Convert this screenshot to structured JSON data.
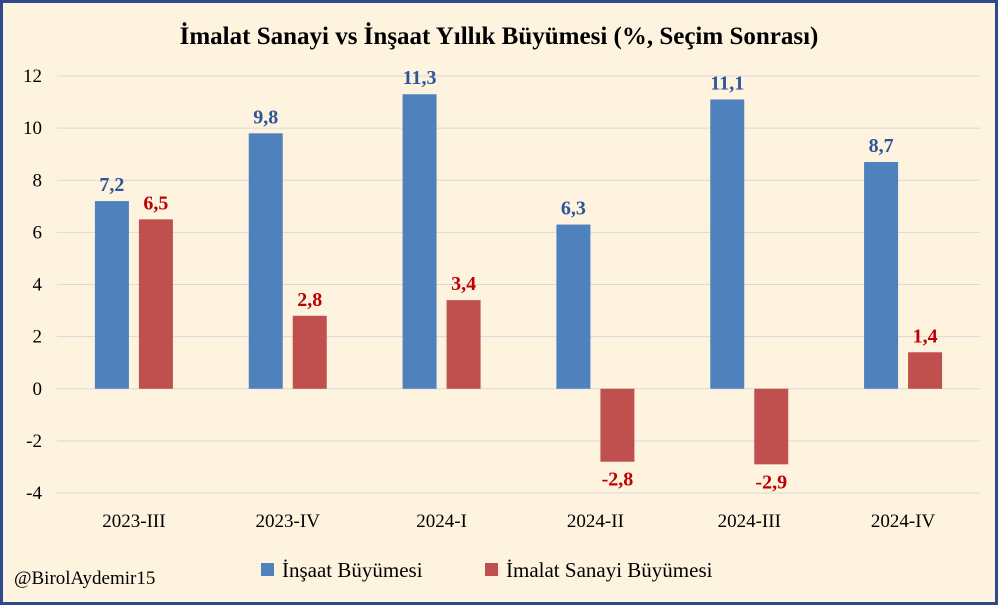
{
  "chart_data": {
    "type": "bar",
    "title": "İmalat Sanayi vs İnşaat Yıllık Büyümesi (%, Seçim Sonrası)",
    "categories": [
      "2023-III",
      "2023-IV",
      "2024-I",
      "2024-II",
      "2024-III",
      "2024-IV"
    ],
    "series": [
      {
        "name": "İnşaat Büyümesi",
        "color": "#4f81bd",
        "label_color": "#2e5597",
        "values": [
          7.2,
          9.8,
          11.3,
          6.3,
          11.1,
          8.7
        ],
        "labels": [
          "7,2",
          "9,8",
          "11,3",
          "6,3",
          "11,1",
          "8,7"
        ]
      },
      {
        "name": "İmalat Sanayi Büyümesi",
        "color": "#c0504d",
        "label_color": "#c00000",
        "values": [
          6.5,
          2.8,
          3.4,
          -2.8,
          -2.9,
          1.4
        ],
        "labels": [
          "6,5",
          "2,8",
          "3,4",
          "-2,8",
          "-2,9",
          "1,4"
        ]
      }
    ],
    "ylim": [
      -4,
      12
    ],
    "yticks": [
      -4,
      -2,
      0,
      2,
      4,
      6,
      8,
      10,
      12
    ],
    "grid": true,
    "legend": "bottom",
    "xlabel": "",
    "ylabel": ""
  },
  "credit": "@BirolAydemir15",
  "colors": {
    "background": "#fdf3df",
    "border": "#2f4a8a",
    "grid": "#d9d9d9"
  }
}
